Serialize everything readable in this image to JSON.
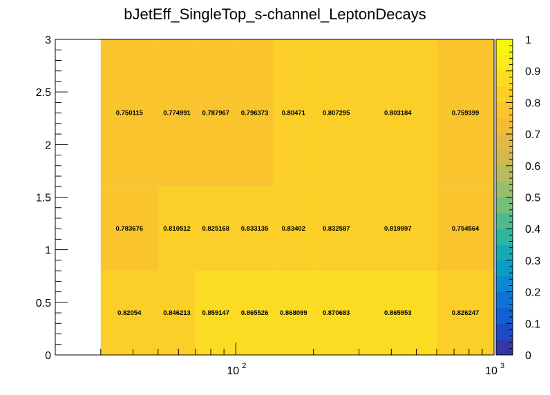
{
  "chart_data": {
    "type": "heatmap",
    "title": "bJetEff_SingleTop_s-channel_LeptonDecays",
    "x_scale": "log",
    "x_range": [
      20,
      1000
    ],
    "y_range": [
      0,
      3
    ],
    "x_edges": [
      30,
      50,
      70,
      100,
      140,
      200,
      300,
      600,
      1000
    ],
    "y_edges": [
      0,
      0.8,
      1.6,
      3
    ],
    "values": [
      [
        0.82054,
        0.846213,
        0.859147,
        0.865526,
        0.868099,
        0.870683,
        0.865953,
        0.826247
      ],
      [
        0.783676,
        0.810512,
        0.825168,
        0.833135,
        0.83402,
        0.832587,
        0.819997,
        0.754564
      ],
      [
        0.750115,
        0.774991,
        0.787967,
        0.796373,
        0.80471,
        0.807295,
        0.803184,
        0.759399
      ]
    ],
    "cell_labels": [
      [
        "0.82054",
        "0.846213",
        "0.859147",
        "0.865526",
        "0.868099",
        "0.870683",
        "0.865953",
        "0.826247"
      ],
      [
        "0.783676",
        "0.810512",
        "0.825168",
        "0.833135",
        "0.83402",
        "0.832587",
        "0.819997",
        "0.754564"
      ],
      [
        "0.750115",
        "0.774991",
        "0.787967",
        "0.796373",
        "0.80471",
        "0.807295",
        "0.803184",
        "0.759399"
      ]
    ],
    "y_ticks": [
      0,
      0.5,
      1,
      1.5,
      2,
      2.5,
      3
    ],
    "y_tick_labels": [
      "0",
      "0.5",
      "1",
      "1.5",
      "2",
      "2.5",
      "3"
    ],
    "x_major_ticks": [
      100,
      1000
    ],
    "x_major_tick_labels": [
      "10",
      "10"
    ],
    "x_major_tick_exponents": [
      "2",
      "3"
    ],
    "color_scale": {
      "range": [
        0,
        1
      ],
      "ticks": [
        0,
        0.1,
        0.2,
        0.3,
        0.4,
        0.5,
        0.6,
        0.7,
        0.8,
        0.9,
        1
      ],
      "tick_labels": [
        "0",
        "0.1",
        "0.2",
        "0.3",
        "0.4",
        "0.5",
        "0.6",
        "0.7",
        "0.8",
        "0.9",
        "1"
      ],
      "colors": [
        "#3537a4",
        "#1b4cc6",
        "#1060d6",
        "#0f73d6",
        "#0d87d2",
        "#0a9cc4",
        "#17aab4",
        "#2db59f",
        "#4fbb8c",
        "#75bf78",
        "#97be6a",
        "#b6bb5e",
        "#d1b852",
        "#e3b844",
        "#f3bb36",
        "#f9c42d",
        "#fbcf27",
        "#fbdc22",
        "#f9e91d",
        "#f9f50e"
      ]
    }
  }
}
